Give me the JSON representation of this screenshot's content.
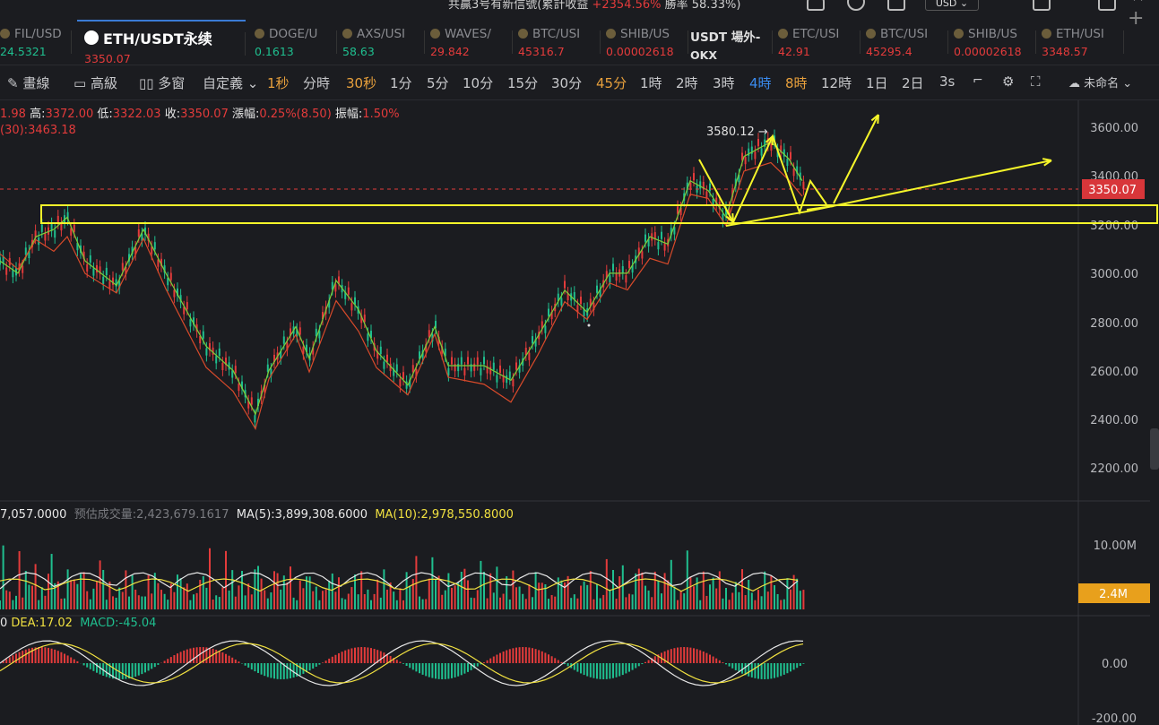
{
  "topbar": {
    "text_a": "共贏3号有新信號(累計收益 ",
    "text_pos": "+2354.56%",
    "text_b": " 勝率 58.33%)",
    "currency": "USD"
  },
  "tabs": [
    {
      "name": "FIL/USD",
      "price": "24.5321",
      "price_color": "#1fbf8f",
      "active": false
    },
    {
      "name": "ETH/USDT永续",
      "price": "3350.07",
      "price_color": "#e33b3b",
      "active": true
    },
    {
      "name": "DOGE/U",
      "price": "0.1613",
      "price_color": "#1fbf8f",
      "active": false
    },
    {
      "name": "AXS/USI",
      "price": "58.63",
      "price_color": "#1fbf8f",
      "active": false
    },
    {
      "name": "WAVES/",
      "price": "29.842",
      "price_color": "#e33b3b",
      "active": false
    },
    {
      "name": "BTC/USI",
      "price": "45316.7",
      "price_color": "#e33b3b",
      "active": false
    },
    {
      "name": "SHIB/US",
      "price": "0.00002618",
      "price_color": "#e33b3b",
      "active": false
    },
    {
      "name": "USDT 場外-",
      "price": "OKX",
      "price_color": "#e0e0e0",
      "active": false
    },
    {
      "name": "ETC/USI",
      "price": "42.91",
      "price_color": "#e33b3b",
      "active": false
    },
    {
      "name": "BTC/USI",
      "price": "45295.4",
      "price_color": "#e33b3b",
      "active": false
    },
    {
      "name": "SHIB/US",
      "price": "0.00002618",
      "price_color": "#e33b3b",
      "active": false
    },
    {
      "name": "ETH/USI",
      "price": "3348.57",
      "price_color": "#e33b3b",
      "active": false
    }
  ],
  "toolbar": {
    "draw": "畫線",
    "advanced": "高級",
    "multi": "多窗",
    "custom": "自定義",
    "intervals": [
      "1秒",
      "分時",
      "30秒",
      "1分",
      "5分",
      "10分",
      "15分",
      "30分",
      "45分",
      "1時",
      "2時",
      "3時",
      "4時",
      "8時",
      "12時",
      "1日",
      "2日",
      "3s"
    ],
    "active_interval": "4時",
    "unnamed": "未命名"
  },
  "ohlc": {
    "open_partial": "1.98",
    "high_label": "高:",
    "high": "3372.00",
    "low_label": "低:",
    "low": "3322.03",
    "close_label": "收:",
    "close": "3350.07",
    "chg_label": "漲幅:",
    "chg": "0.25%(8.50)",
    "amp_label": "振幅:",
    "amp": "1.50%"
  },
  "ma_line": "(30):3463.18",
  "price_axis": [
    "3600.00",
    "3400.00",
    "3200.00",
    "3000.00",
    "2800.00",
    "2600.00",
    "2400.00",
    "2200.00"
  ],
  "price_tag": "3350.07",
  "peak_label": "3580.12 →",
  "volume": {
    "vol_partial": "7,057.0000",
    "est_label": "预估成交量:",
    "est": "2,423,679.1617",
    "ma5": "MA(5):3,899,308.6000",
    "ma10": "MA(10):2,978,550.8000",
    "axis": "10.00M",
    "tag": "2.4M"
  },
  "macd": {
    "prefix": "0",
    "dea": "DEA:17.02",
    "macd": "MACD:-45.04",
    "axis_zero": "0.00",
    "axis_neg": "-200.00"
  },
  "colors": {
    "up": "#e33b3b",
    "down": "#1fbf8f",
    "ma_fast": "#7ccf3a",
    "ma_slow": "#d84a2a",
    "annotation": "#f5f52a",
    "tag_volume": "#e8a01c"
  }
}
